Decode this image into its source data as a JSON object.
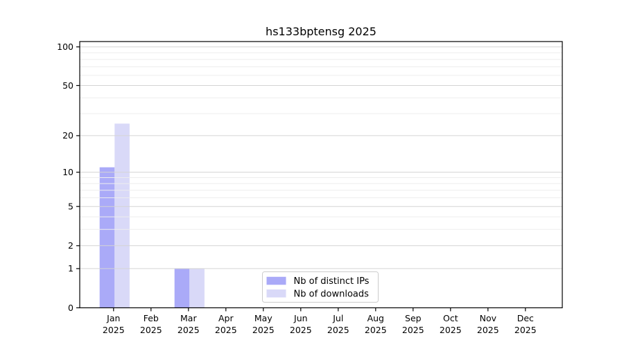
{
  "figure": {
    "background": "#ffffff"
  },
  "chart_data": {
    "type": "bar",
    "title": "hs133bptensg 2025",
    "x_tick_labels": [
      {
        "month": "Jan",
        "year": "2025"
      },
      {
        "month": "Feb",
        "year": "2025"
      },
      {
        "month": "Mar",
        "year": "2025"
      },
      {
        "month": "Apr",
        "year": "2025"
      },
      {
        "month": "May",
        "year": "2025"
      },
      {
        "month": "Jun",
        "year": "2025"
      },
      {
        "month": "Jul",
        "year": "2025"
      },
      {
        "month": "Aug",
        "year": "2025"
      },
      {
        "month": "Sep",
        "year": "2025"
      },
      {
        "month": "Oct",
        "year": "2025"
      },
      {
        "month": "Nov",
        "year": "2025"
      },
      {
        "month": "Dec",
        "year": "2025"
      }
    ],
    "series": [
      {
        "name": "Nb of distinct IPs",
        "color": "#aaaaf8",
        "values": [
          11,
          0,
          1,
          0,
          0,
          0,
          0,
          0,
          0,
          0,
          0,
          0
        ]
      },
      {
        "name": "Nb of downloads",
        "color": "#d9d9f8",
        "values": [
          25,
          0,
          1,
          0,
          0,
          0,
          0,
          0,
          0,
          0,
          0,
          0
        ]
      }
    ],
    "y_axis": {
      "scale": "log10(value+1)",
      "ylim": [
        0,
        110
      ],
      "major_ticks": [
        0,
        1,
        2,
        5,
        10,
        20,
        50,
        100
      ],
      "minor_ticks": [
        3,
        4,
        6,
        7,
        8,
        9,
        30,
        40,
        60,
        70,
        80,
        90
      ]
    },
    "grid": {
      "major_color": "#d4d4d4",
      "minor_color": "#ededed"
    },
    "legend": {
      "position": "bottom-center",
      "border_color": "#cccccc",
      "background": "#ffffff"
    },
    "axis_color": "#000000"
  }
}
